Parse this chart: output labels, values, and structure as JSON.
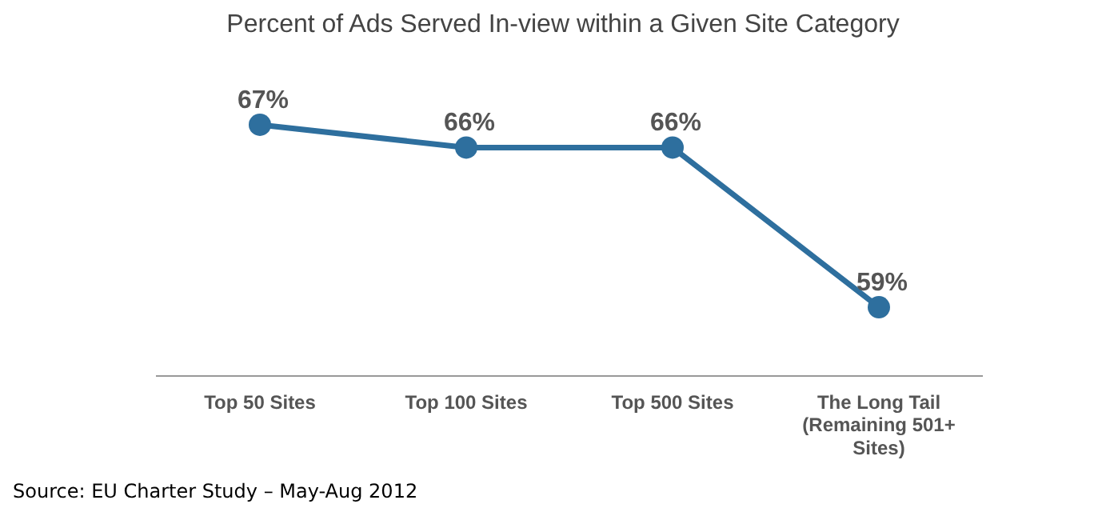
{
  "chart_data": {
    "type": "line",
    "title": "Percent of Ads Served In-view within a Given Site Category",
    "categories": [
      "Top 50 Sites",
      "Top 100 Sites",
      "Top 500 Sites",
      "The Long Tail (Remaining 501+ Sites)"
    ],
    "series": [
      {
        "color": "#2e6f9e",
        "values": [
          67,
          66,
          66,
          59
        ],
        "value_labels": [
          "67%",
          "66%",
          "66%",
          "59%"
        ]
      }
    ],
    "tick_labels": "x",
    "grid": false,
    "legend": false,
    "marker": "circle",
    "line_style": "solid",
    "annotations": [
      "Source: EU Charter Study – May-Aug 2012"
    ]
  }
}
